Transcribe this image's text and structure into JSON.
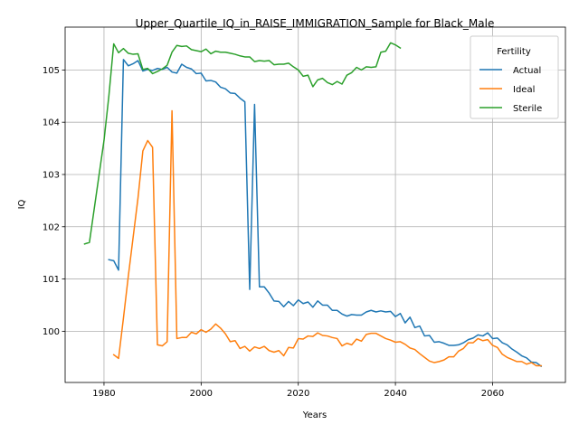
{
  "chart_data": {
    "type": "line",
    "title": "Upper_Quartile_IQ_in_RAISE_IMMIGRATION_Sample for Black_Male",
    "xlabel": "Years",
    "ylabel": "IQ",
    "xlim": [
      1972,
      2075
    ],
    "ylim": [
      99.02,
      105.82
    ],
    "xticks": [
      1980,
      2000,
      2020,
      2040,
      2060
    ],
    "yticks": [
      100,
      101,
      102,
      103,
      104,
      105
    ],
    "grid": true,
    "legend": {
      "title": "Fertility",
      "placement": "top-right"
    },
    "series": [
      {
        "name": "Actual",
        "color": "#1f77b4",
        "x": [
          1981,
          1982,
          1983,
          1984,
          1985,
          1986,
          1987,
          1988,
          1989,
          1990,
          1991,
          1992,
          1993,
          1994,
          1995,
          1996,
          1997,
          1998,
          1999,
          2000,
          2001,
          2002,
          2003,
          2004,
          2005,
          2006,
          2007,
          2008,
          2009,
          2010,
          2011,
          2012,
          2013,
          2014,
          2015,
          2016,
          2017,
          2018,
          2019,
          2020,
          2021,
          2022,
          2023,
          2024,
          2025,
          2026,
          2027,
          2028,
          2029,
          2030,
          2031,
          2032,
          2033,
          2034,
          2035,
          2036,
          2037,
          2038,
          2039,
          2040,
          2041,
          2042,
          2043,
          2044,
          2045,
          2046,
          2047,
          2048,
          2049,
          2050,
          2051,
          2052,
          2053,
          2054,
          2055,
          2056,
          2057,
          2058,
          2059,
          2060,
          2061,
          2062,
          2063,
          2064,
          2065,
          2066,
          2067,
          2068,
          2069,
          2070
        ],
        "values": [
          101.37,
          101.35,
          101.17,
          105.2,
          105.08,
          105.12,
          105.18,
          104.98,
          105.01,
          104.99,
          105.03,
          105.01,
          105.05,
          104.96,
          104.94,
          105.11,
          105.05,
          105.02,
          104.93,
          104.94,
          104.79,
          104.8,
          104.77,
          104.67,
          104.64,
          104.56,
          104.55,
          104.46,
          104.39,
          100.8,
          104.34,
          100.85,
          100.85,
          100.73,
          100.58,
          100.57,
          100.47,
          100.57,
          100.49,
          100.6,
          100.53,
          100.56,
          100.46,
          100.58,
          100.5,
          100.5,
          100.4,
          100.4,
          100.33,
          100.29,
          100.32,
          100.31,
          100.31,
          100.37,
          100.4,
          100.37,
          100.39,
          100.37,
          100.38,
          100.28,
          100.34,
          100.16,
          100.27,
          100.07,
          100.1,
          99.91,
          99.92,
          99.79,
          99.8,
          99.77,
          99.73,
          99.73,
          99.74,
          99.78,
          99.84,
          99.87,
          99.93,
          99.91,
          99.97,
          99.86,
          99.87,
          99.78,
          99.74,
          99.66,
          99.6,
          99.53,
          99.49,
          99.41,
          99.4,
          99.33
        ]
      },
      {
        "name": "Ideal",
        "color": "#ff7f0e",
        "x": [
          1982,
          1983,
          1984,
          1985,
          1986,
          1987,
          1988,
          1989,
          1990,
          1991,
          1992,
          1993,
          1994,
          1995,
          1996,
          1997,
          1998,
          1999,
          2000,
          2001,
          2002,
          2003,
          2004,
          2005,
          2006,
          2007,
          2008,
          2009,
          2010,
          2011,
          2012,
          2013,
          2014,
          2015,
          2016,
          2017,
          2018,
          2019,
          2020,
          2021,
          2022,
          2023,
          2024,
          2025,
          2026,
          2027,
          2028,
          2029,
          2030,
          2031,
          2032,
          2033,
          2034,
          2035,
          2036,
          2037,
          2038,
          2039,
          2040,
          2041,
          2042,
          2043,
          2044,
          2045,
          2046,
          2047,
          2048,
          2049,
          2050,
          2051,
          2052,
          2053,
          2054,
          2055,
          2056,
          2057,
          2058,
          2059,
          2060,
          2061,
          2062,
          2063,
          2064,
          2065,
          2066,
          2067,
          2068,
          2069,
          2070
        ],
        "values": [
          99.55,
          99.48,
          100.25,
          101.05,
          101.8,
          102.55,
          103.45,
          103.65,
          103.52,
          99.74,
          99.72,
          99.8,
          104.22,
          99.86,
          99.88,
          99.88,
          99.98,
          99.95,
          100.03,
          99.98,
          100.04,
          100.14,
          100.06,
          99.95,
          99.8,
          99.82,
          99.67,
          99.71,
          99.62,
          99.7,
          99.67,
          99.71,
          99.63,
          99.6,
          99.63,
          99.53,
          99.69,
          99.68,
          99.86,
          99.85,
          99.91,
          99.9,
          99.97,
          99.92,
          99.91,
          99.88,
          99.86,
          99.72,
          99.77,
          99.74,
          99.85,
          99.81,
          99.94,
          99.96,
          99.96,
          99.91,
          99.86,
          99.83,
          99.79,
          99.8,
          99.75,
          99.68,
          99.65,
          99.57,
          99.5,
          99.43,
          99.4,
          99.42,
          99.45,
          99.51,
          99.51,
          99.62,
          99.67,
          99.78,
          99.78,
          99.86,
          99.82,
          99.84,
          99.73,
          99.69,
          99.56,
          99.5,
          99.46,
          99.42,
          99.42,
          99.37,
          99.4,
          99.34,
          99.34
        ]
      },
      {
        "name": "Sterile",
        "color": "#2ca02c",
        "x": [
          1976,
          1977,
          1980,
          1981,
          1982,
          1983,
          1984,
          1985,
          1986,
          1987,
          1988,
          1989,
          1990,
          1991,
          1992,
          1993,
          1994,
          1995,
          1996,
          1997,
          1998,
          1999,
          2000,
          2001,
          2002,
          2003,
          2004,
          2005,
          2006,
          2007,
          2008,
          2009,
          2010,
          2011,
          2012,
          2013,
          2014,
          2015,
          2016,
          2017,
          2018,
          2019,
          2020,
          2021,
          2022,
          2023,
          2024,
          2025,
          2026,
          2027,
          2028,
          2029,
          2030,
          2031,
          2032,
          2033,
          2034,
          2035,
          2036,
          2037,
          2038,
          2039,
          2040,
          2041
        ],
        "values": [
          101.67,
          101.7,
          103.65,
          104.5,
          105.5,
          105.33,
          105.41,
          105.32,
          105.3,
          105.31,
          105.01,
          105.03,
          104.93,
          104.97,
          105.02,
          105.09,
          105.34,
          105.47,
          105.45,
          105.46,
          105.39,
          105.37,
          105.35,
          105.4,
          105.31,
          105.36,
          105.34,
          105.34,
          105.32,
          105.3,
          105.27,
          105.25,
          105.25,
          105.16,
          105.18,
          105.17,
          105.18,
          105.1,
          105.11,
          105.11,
          105.13,
          105.06,
          105.0,
          104.88,
          104.9,
          104.68,
          104.81,
          104.84,
          104.76,
          104.72,
          104.78,
          104.73,
          104.9,
          104.95,
          105.05,
          105.0,
          105.06,
          105.05,
          105.06,
          105.34,
          105.36,
          105.52,
          105.48,
          105.42
        ]
      }
    ]
  }
}
